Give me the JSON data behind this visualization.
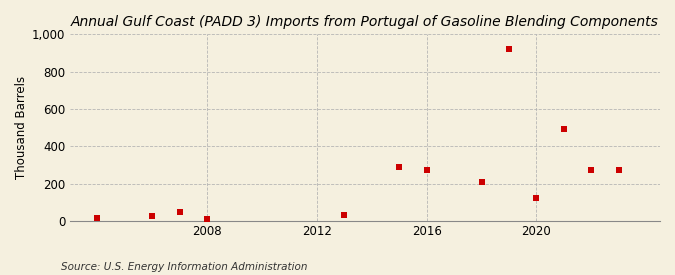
{
  "title": "Annual Gulf Coast (PADD 3) Imports from Portugal of Gasoline Blending Components",
  "ylabel": "Thousand Barrels",
  "source": "Source: U.S. Energy Information Administration",
  "background_color": "#f5f0df",
  "marker_color": "#cc0000",
  "grid_color": "#b0b0b0",
  "years": [
    2004,
    2006,
    2007,
    2008,
    2013,
    2015,
    2016,
    2018,
    2019,
    2020,
    2021,
    2022,
    2023
  ],
  "values": [
    15,
    25,
    50,
    10,
    30,
    290,
    275,
    210,
    920,
    120,
    490,
    275,
    275
  ],
  "xlim": [
    2003,
    2024.5
  ],
  "ylim": [
    0,
    1000
  ],
  "yticks": [
    0,
    200,
    400,
    600,
    800,
    1000
  ],
  "ytick_labels": [
    "0",
    "200",
    "400",
    "600",
    "800",
    "1,000"
  ],
  "xticks": [
    2008,
    2012,
    2016,
    2020
  ],
  "title_fontsize": 10,
  "axis_fontsize": 8.5,
  "source_fontsize": 7.5
}
